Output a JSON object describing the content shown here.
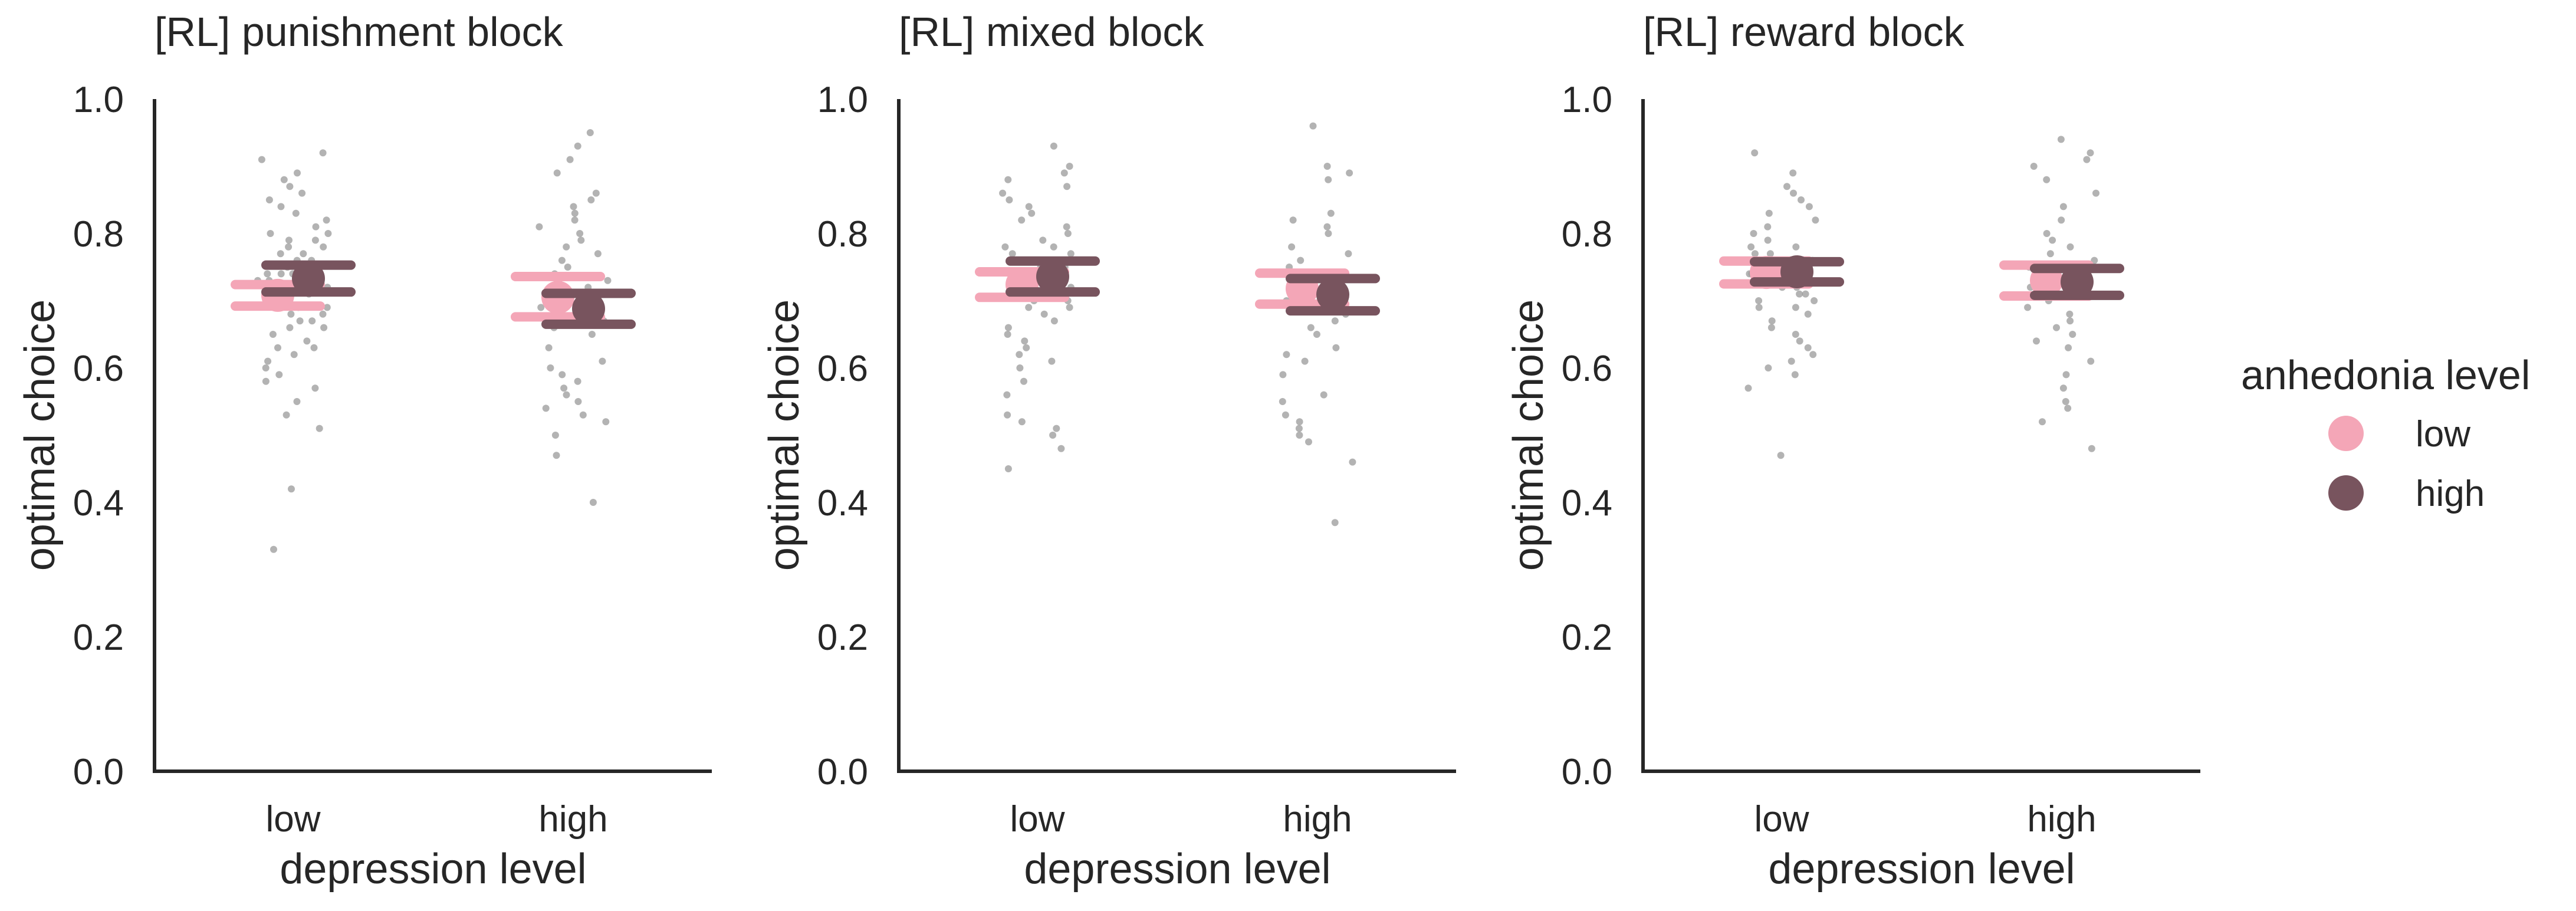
{
  "chart_data": [
    {
      "type": "scatter",
      "title": "[RL] punishment block",
      "xlabel": "depression level",
      "ylabel": "optimal choice",
      "categories": [
        "low",
        "high"
      ],
      "ylim": [
        0,
        1
      ],
      "yticks": [
        "0.0",
        "0.2",
        "0.4",
        "0.6",
        "0.8",
        "1.0"
      ],
      "series": [
        {
          "name": "low",
          "color": "#f4a6b7",
          "means": [
            0.708,
            0.705
          ],
          "ci": [
            [
              0.692,
              0.724
            ],
            [
              0.676,
              0.736
            ]
          ]
        },
        {
          "name": "high",
          "color": "#78545e",
          "means": [
            0.733,
            0.688
          ],
          "ci": [
            [
              0.713,
              0.753
            ],
            [
              0.665,
              0.711
            ]
          ]
        }
      ],
      "points": [
        [
          0.92,
          0.91,
          0.89,
          0.88,
          0.87,
          0.86,
          0.85,
          0.84,
          0.83,
          0.82,
          0.81,
          0.8,
          0.8,
          0.79,
          0.79,
          0.78,
          0.78,
          0.77,
          0.77,
          0.76,
          0.76,
          0.75,
          0.75,
          0.74,
          0.74,
          0.74,
          0.73,
          0.73,
          0.72,
          0.72,
          0.71,
          0.71,
          0.7,
          0.7,
          0.69,
          0.69,
          0.68,
          0.68,
          0.67,
          0.67,
          0.66,
          0.66,
          0.65,
          0.64,
          0.63,
          0.63,
          0.62,
          0.61,
          0.6,
          0.59,
          0.58,
          0.57,
          0.55,
          0.53,
          0.51,
          0.42,
          0.33
        ],
        [
          0.95,
          0.93,
          0.91,
          0.89,
          0.86,
          0.85,
          0.84,
          0.83,
          0.82,
          0.81,
          0.8,
          0.79,
          0.78,
          0.77,
          0.76,
          0.75,
          0.74,
          0.73,
          0.72,
          0.71,
          0.7,
          0.69,
          0.68,
          0.67,
          0.66,
          0.65,
          0.63,
          0.61,
          0.6,
          0.59,
          0.58,
          0.57,
          0.56,
          0.55,
          0.54,
          0.53,
          0.52,
          0.5,
          0.47,
          0.4
        ]
      ]
    },
    {
      "type": "scatter",
      "title": "[RL] mixed block",
      "xlabel": "depression level",
      "ylabel": "optimal choice",
      "categories": [
        "low",
        "high"
      ],
      "ylim": [
        0,
        1
      ],
      "yticks": [
        "0.0",
        "0.2",
        "0.4",
        "0.6",
        "0.8",
        "1.0"
      ],
      "series": [
        {
          "name": "low",
          "color": "#f4a6b7",
          "means": [
            0.724,
            0.718
          ],
          "ci": [
            [
              0.705,
              0.743
            ],
            [
              0.695,
              0.741
            ]
          ]
        },
        {
          "name": "high",
          "color": "#78545e",
          "means": [
            0.736,
            0.709
          ],
          "ci": [
            [
              0.713,
              0.759
            ],
            [
              0.685,
              0.733
            ]
          ]
        }
      ],
      "points": [
        [
          0.93,
          0.9,
          0.89,
          0.88,
          0.87,
          0.86,
          0.85,
          0.84,
          0.83,
          0.82,
          0.81,
          0.8,
          0.79,
          0.78,
          0.78,
          0.77,
          0.77,
          0.76,
          0.76,
          0.75,
          0.75,
          0.74,
          0.74,
          0.73,
          0.73,
          0.72,
          0.72,
          0.71,
          0.71,
          0.7,
          0.7,
          0.69,
          0.69,
          0.68,
          0.67,
          0.66,
          0.65,
          0.64,
          0.63,
          0.62,
          0.61,
          0.6,
          0.58,
          0.56,
          0.53,
          0.52,
          0.51,
          0.5,
          0.48,
          0.45
        ],
        [
          0.96,
          0.9,
          0.89,
          0.88,
          0.83,
          0.82,
          0.81,
          0.8,
          0.78,
          0.77,
          0.76,
          0.75,
          0.74,
          0.73,
          0.72,
          0.71,
          0.7,
          0.69,
          0.68,
          0.67,
          0.66,
          0.65,
          0.63,
          0.62,
          0.61,
          0.59,
          0.56,
          0.55,
          0.53,
          0.52,
          0.51,
          0.5,
          0.49,
          0.46,
          0.37
        ]
      ]
    },
    {
      "type": "scatter",
      "title": "[RL] reward block",
      "xlabel": "depression level",
      "ylabel": "optimal choice",
      "categories": [
        "low",
        "high"
      ],
      "ylim": [
        0,
        1
      ],
      "yticks": [
        "0.0",
        "0.2",
        "0.4",
        "0.6",
        "0.8",
        "1.0"
      ],
      "series": [
        {
          "name": "low",
          "color": "#f4a6b7",
          "means": [
            0.742,
            0.73
          ],
          "ci": [
            [
              0.725,
              0.759
            ],
            [
              0.707,
              0.753
            ]
          ]
        },
        {
          "name": "high",
          "color": "#78545e",
          "means": [
            0.743,
            0.728
          ],
          "ci": [
            [
              0.728,
              0.758
            ],
            [
              0.708,
              0.748
            ]
          ]
        }
      ],
      "points": [
        [
          0.92,
          0.89,
          0.87,
          0.86,
          0.85,
          0.84,
          0.83,
          0.82,
          0.81,
          0.8,
          0.79,
          0.78,
          0.78,
          0.77,
          0.77,
          0.76,
          0.76,
          0.75,
          0.75,
          0.74,
          0.74,
          0.73,
          0.73,
          0.72,
          0.72,
          0.71,
          0.71,
          0.7,
          0.7,
          0.69,
          0.69,
          0.68,
          0.67,
          0.66,
          0.65,
          0.64,
          0.63,
          0.62,
          0.61,
          0.6,
          0.59,
          0.57,
          0.47
        ],
        [
          0.94,
          0.92,
          0.91,
          0.9,
          0.88,
          0.86,
          0.84,
          0.82,
          0.8,
          0.79,
          0.78,
          0.77,
          0.76,
          0.75,
          0.74,
          0.73,
          0.72,
          0.71,
          0.7,
          0.69,
          0.68,
          0.67,
          0.66,
          0.65,
          0.64,
          0.63,
          0.61,
          0.59,
          0.57,
          0.55,
          0.54,
          0.52,
          0.48
        ]
      ]
    }
  ],
  "legend": {
    "title": "anhedonia level",
    "placement": "right",
    "items": [
      {
        "label": "low",
        "color": "#f4a6b7"
      },
      {
        "label": "high",
        "color": "#78545e"
      }
    ]
  }
}
